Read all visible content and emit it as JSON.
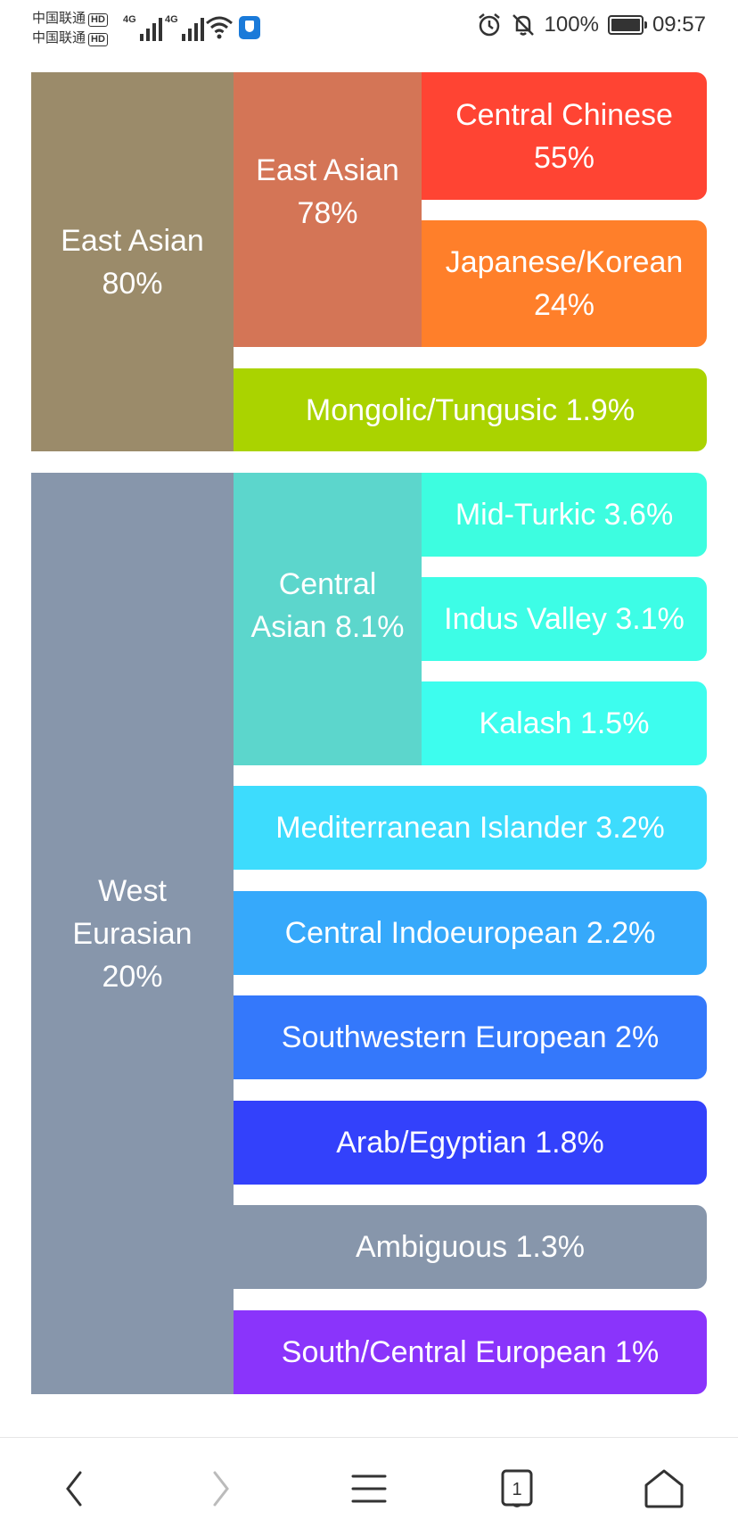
{
  "status_bar": {
    "carrier_1": "中国联通",
    "carrier_2": "中国联通",
    "hd_badge": "HD",
    "network_1": "4G",
    "network_2": "4G",
    "battery_percent": "100%",
    "time": "09:57"
  },
  "treemap": {
    "east_asian_group": {
      "name": "East Asian",
      "value": "80%"
    },
    "east_asian_sub": {
      "name": "East Asian",
      "value": "78%"
    },
    "central_chinese": {
      "name": "Central Chinese",
      "value": "55%"
    },
    "japanese_korean": {
      "name": "Japanese/Korean",
      "value": "24%"
    },
    "mongolic_tungusic": {
      "label": "Mongolic/Tungusic 1.9%"
    },
    "west_eurasian_group": {
      "line1": "West",
      "line2": "Eurasian",
      "value": "20%"
    },
    "central_asian": {
      "line1": "Central",
      "line2": "Asian 8.1%"
    },
    "mid_turkic": {
      "label": "Mid-Turkic 3.6%"
    },
    "indus_valley": {
      "label": "Indus Valley 3.1%"
    },
    "kalash": {
      "label": "Kalash 1.5%"
    },
    "mediterranean_islander": {
      "label": "Mediterranean Islander 3.2%"
    },
    "central_indoeuropean": {
      "label": "Central Indoeuropean 2.2%"
    },
    "southwestern_european": {
      "label": "Southwestern European 2%"
    },
    "arab_egyptian": {
      "label": "Arab/Egyptian 1.8%"
    },
    "ambiguous": {
      "label": "Ambiguous 1.3%"
    },
    "south_central_european": {
      "label": "South/Central European 1%"
    }
  },
  "colors": {
    "east_asian_group": "#9b8b6a",
    "east_asian_sub": "#d47556",
    "central_chinese": "#ff4433",
    "japanese_korean": "#ff7f2a",
    "mongolic_tungusic": "#aad300",
    "west_eurasian_group": "#8796ab",
    "central_asian": "#5cd6cc",
    "mid_turkic": "#3dfde0",
    "indus_valley": "#3dfde6",
    "kalash": "#3dfdee",
    "mediterranean_islander": "#3ddcfd",
    "central_indoeuropean": "#36a9fb",
    "southwestern_european": "#3478fb",
    "arab_egyptian": "#3341fb",
    "ambiguous": "#8796ab",
    "south_central_european": "#8a34fb"
  },
  "nav_bar": {
    "tab_count": "1",
    "icons": [
      "back-icon",
      "forward-icon",
      "menu-icon",
      "tabs-icon",
      "home-icon"
    ]
  }
}
